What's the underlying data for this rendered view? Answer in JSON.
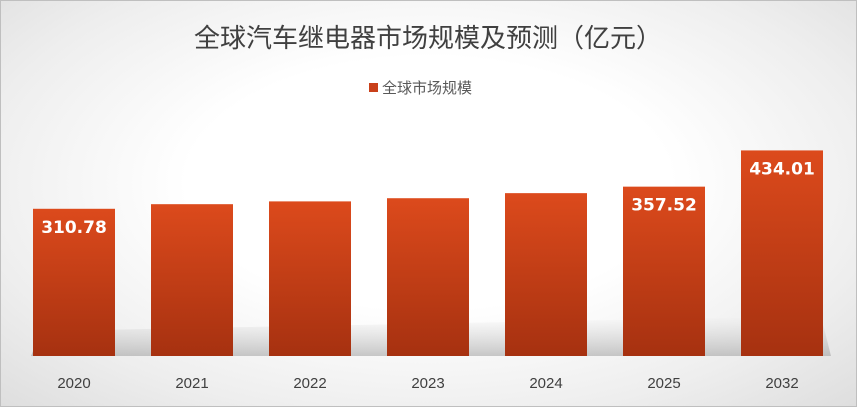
{
  "chart_data": {
    "type": "bar",
    "title": "全球汽车继电器市场规模及预测（亿元）",
    "legend": [
      "全球市场规模"
    ],
    "legend_position": "top",
    "categories": [
      "2020",
      "2021",
      "2022",
      "2023",
      "2024",
      "2025",
      "2032"
    ],
    "series": [
      {
        "name": "全球市场规模",
        "values": [
          310.78,
          320.5,
          326.4,
          333.1,
          343.8,
          357.52,
          434.01
        ],
        "data_labels": [
          "310.78",
          "",
          "",
          "",
          "",
          "357.52",
          "434.01"
        ]
      }
    ],
    "ylim": [
      0,
      665
    ],
    "xlabel": "",
    "ylabel": "",
    "grid": false,
    "colors": {
      "bar_top": "#dc4a1c",
      "bar_bottom": "#a63110",
      "legend_marker": "#c9401a"
    }
  }
}
